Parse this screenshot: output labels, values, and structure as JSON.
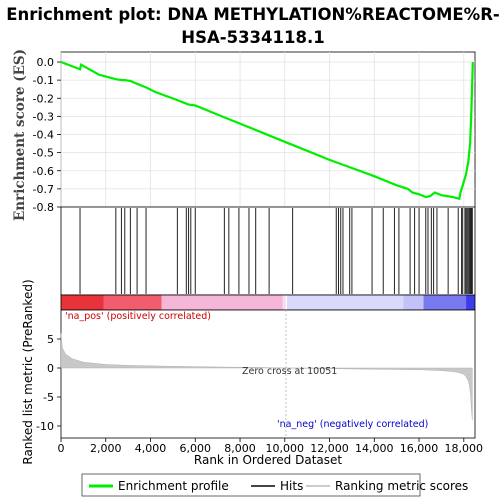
{
  "title_line1": "Enrichment plot: DNA METHYLATION%REACTOME%R-",
  "title_line2": "HSA-5334118.1",
  "chart_data": [
    {
      "type": "line",
      "panel": "enrichment",
      "ylabel": "Enrichment score (ES)",
      "xlim": [
        0,
        18500
      ],
      "ylim": [
        -0.8,
        0.03
      ],
      "yticks": [
        "0.0",
        "-0.1",
        "-0.2",
        "-0.3",
        "-0.4",
        "-0.5",
        "-0.6",
        "-0.7",
        "-0.8"
      ],
      "ytick_values": [
        0.0,
        -0.1,
        -0.2,
        -0.3,
        -0.4,
        -0.5,
        -0.6,
        -0.7,
        -0.8
      ],
      "grid": true,
      "series": [
        {
          "name": "Enrichment profile",
          "color": "#00ee00",
          "x": [
            0,
            850,
            900,
            1700,
            2450,
            2700,
            2850,
            3100,
            3400,
            3800,
            4200,
            5200,
            5600,
            5700,
            6000,
            7000,
            8000,
            9000,
            10000,
            11000,
            12000,
            13000,
            14000,
            15000,
            15500,
            15700,
            16000,
            16300,
            16500,
            16700,
            17000,
            17500,
            17800,
            17850,
            17950,
            18100,
            18200,
            18280,
            18330,
            18380,
            18400
          ],
          "y": [
            0.0,
            -0.04,
            -0.015,
            -0.07,
            -0.095,
            -0.1,
            -0.1,
            -0.105,
            -0.12,
            -0.14,
            -0.165,
            -0.21,
            -0.23,
            -0.235,
            -0.24,
            -0.29,
            -0.34,
            -0.39,
            -0.44,
            -0.49,
            -0.54,
            -0.585,
            -0.63,
            -0.68,
            -0.7,
            -0.72,
            -0.73,
            -0.745,
            -0.74,
            -0.72,
            -0.735,
            -0.745,
            -0.755,
            -0.72,
            -0.68,
            -0.62,
            -0.55,
            -0.45,
            -0.3,
            -0.1,
            0.0
          ]
        }
      ]
    },
    {
      "type": "scatter",
      "panel": "hits",
      "series": [
        {
          "name": "Hits",
          "x": [
            850,
            2450,
            2700,
            2850,
            3100,
            3400,
            3800,
            5200,
            5600,
            5700,
            5800,
            6000,
            7300,
            7500,
            7950,
            8400,
            8700,
            9300,
            10350,
            12300,
            12400,
            12500,
            12600,
            12900,
            13000,
            13900,
            14400,
            14900,
            15100,
            15600,
            15800,
            16000,
            16300,
            16400,
            16550,
            16650,
            16800,
            17300,
            17750,
            17900,
            17950,
            18050,
            18100,
            18150,
            18200,
            18250,
            18300,
            18330,
            18360,
            18380
          ]
        }
      ]
    },
    {
      "type": "area",
      "panel": "ranked_list",
      "ylabel": "Ranked list metric (PreRanked)",
      "xlabel": "Rank in Ordered Dataset",
      "xlim": [
        0,
        18500
      ],
      "ylim": [
        -10,
        8.5
      ],
      "yticks": [
        "5",
        "0",
        "-5",
        "-10"
      ],
      "ytick_values": [
        5,
        0,
        -5,
        -10
      ],
      "xticks": [
        "0",
        "2,000",
        "4,000",
        "6,000",
        "8,000",
        "10,000",
        "12,000",
        "14,000",
        "16,000",
        "18,000"
      ],
      "xtick_values": [
        0,
        2000,
        4000,
        6000,
        8000,
        10000,
        12000,
        14000,
        16000,
        18000
      ],
      "series": [
        {
          "name": "Ranking metric scores",
          "x": [
            0,
            60,
            200,
            500,
            1000,
            2000,
            3000,
            5000,
            7000,
            9000,
            10051,
            12000,
            14000,
            16000,
            17000,
            17500,
            17800,
            18000,
            18100,
            18200,
            18250,
            18300,
            18330,
            18380
          ],
          "y": [
            6.0,
            3.5,
            2.4,
            1.6,
            1.0,
            0.6,
            0.45,
            0.3,
            0.18,
            0.08,
            0.0,
            -0.12,
            -0.2,
            -0.3,
            -0.45,
            -0.6,
            -0.8,
            -1.1,
            -1.5,
            -2.2,
            -3.0,
            -4.5,
            -6.5,
            -9.0
          ]
        }
      ],
      "annotations": {
        "pos": "'na_pos' (positively correlated)",
        "zero": "Zero cross at 10051",
        "neg": "'na_neg' (negatively correlated)"
      },
      "zero_cross": 10051
    }
  ],
  "legend": {
    "items": [
      {
        "label": "Enrichment profile",
        "color": "#00ee00"
      },
      {
        "label": "Hits",
        "color": "#444444"
      },
      {
        "label": "Ranking metric scores",
        "color": "#cccccc"
      }
    ]
  }
}
